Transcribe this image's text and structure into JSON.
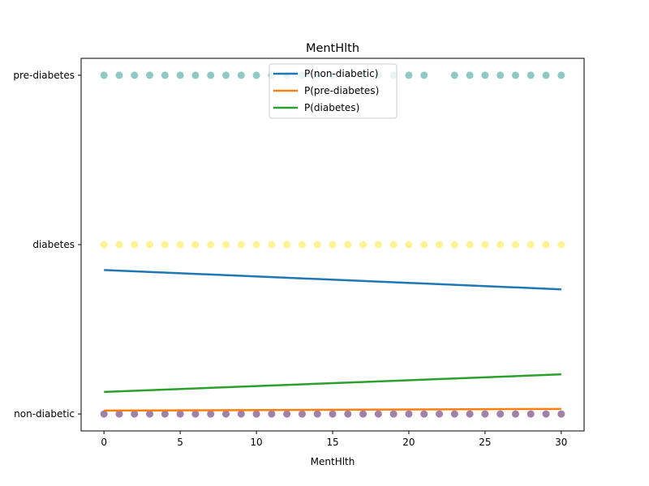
{
  "chart_data": {
    "type": "scatter",
    "title": "MentHlth",
    "xlabel": "MentHlth",
    "ylabel": "",
    "xlim": [
      -1.5,
      31.5
    ],
    "ylim": [
      -0.05,
      1.05
    ],
    "x_ticks": [
      0,
      5,
      10,
      15,
      20,
      25,
      30
    ],
    "y_ticks": [
      {
        "value": 0,
        "label": "non-diabetic"
      },
      {
        "value": 0.5,
        "label": "diabetes"
      },
      {
        "value": 1,
        "label": "pre-diabetes"
      }
    ],
    "scatter": [
      {
        "class": "pre-diabetes",
        "y": 1,
        "color": "#21918c",
        "x": [
          0,
          1,
          2,
          3,
          4,
          5,
          6,
          7,
          8,
          9,
          10,
          11,
          12,
          13,
          14,
          15,
          16,
          17,
          18,
          19,
          20,
          21,
          23,
          24,
          25,
          26,
          27,
          28,
          29,
          30
        ]
      },
      {
        "class": "diabetes",
        "y": 0.5,
        "color": "#fde725",
        "x": [
          0,
          1,
          2,
          3,
          4,
          5,
          6,
          7,
          8,
          9,
          10,
          11,
          12,
          13,
          14,
          15,
          16,
          17,
          18,
          19,
          20,
          21,
          22,
          23,
          24,
          25,
          26,
          27,
          28,
          29,
          30
        ]
      },
      {
        "class": "non-diabetic",
        "y": 0,
        "color": "#440154",
        "x": [
          0,
          1,
          2,
          3,
          4,
          5,
          6,
          7,
          8,
          9,
          10,
          11,
          12,
          13,
          14,
          15,
          16,
          17,
          18,
          19,
          20,
          21,
          22,
          23,
          24,
          25,
          26,
          27,
          28,
          29,
          30
        ]
      }
    ],
    "series": [
      {
        "name": "P(non-diabetic)",
        "color": "#1f77b4",
        "x": [
          0,
          30
        ],
        "values": [
          0.425,
          0.368
        ]
      },
      {
        "name": "P(pre-diabetes)",
        "color": "#ff7f0e",
        "x": [
          0,
          30
        ],
        "values": [
          0.01,
          0.015
        ]
      },
      {
        "name": "P(diabetes)",
        "color": "#2ca02c",
        "x": [
          0,
          30
        ],
        "values": [
          0.065,
          0.117
        ]
      }
    ],
    "legend": {
      "position": "top-center"
    },
    "grid": false
  }
}
